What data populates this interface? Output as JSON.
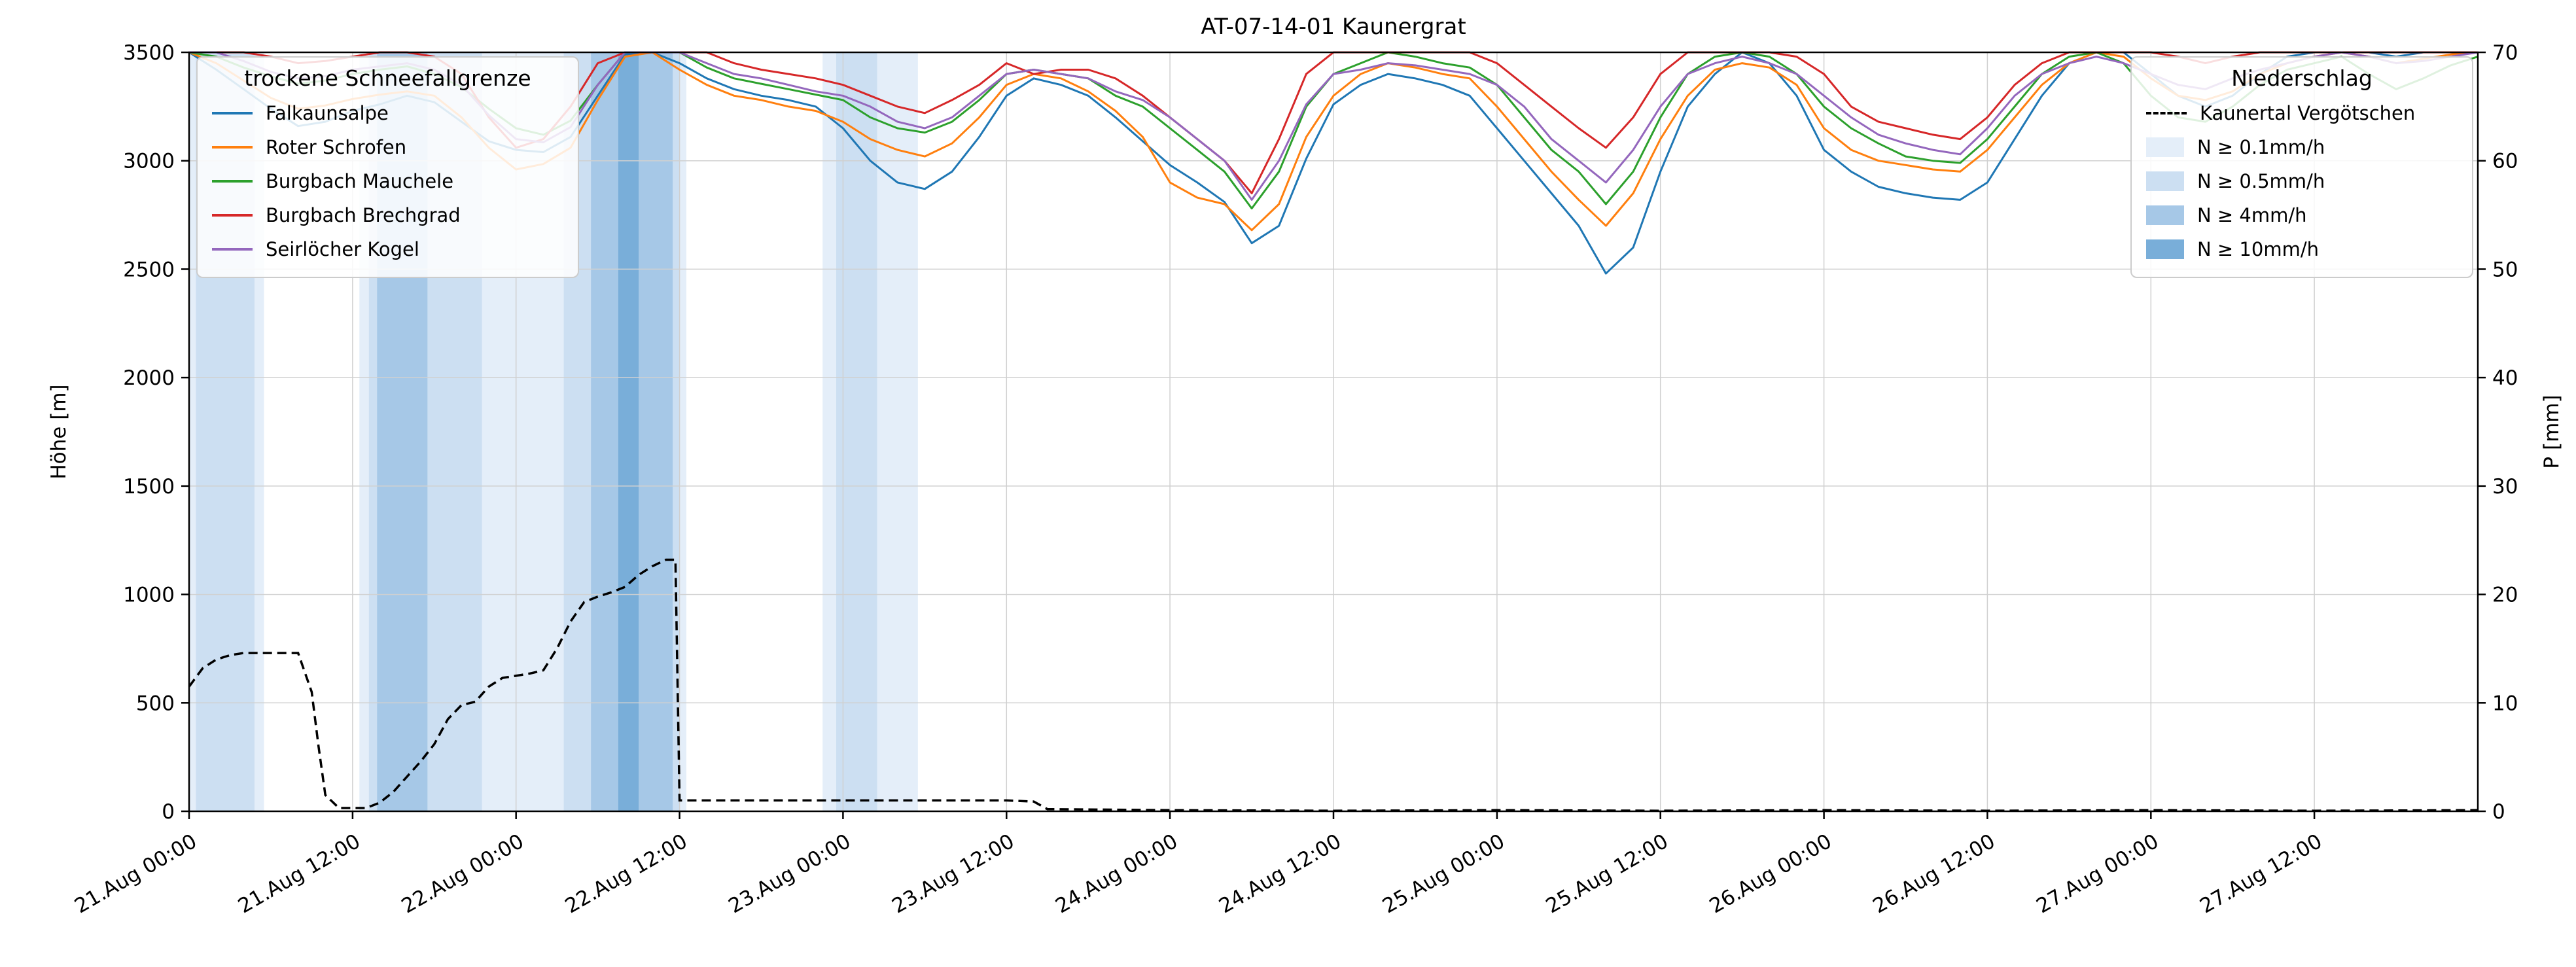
{
  "title": "AT-07-14-01 Kaunergrat",
  "axes": {
    "y_left": {
      "label": "Höhe [m]",
      "min": 0,
      "max": 3500,
      "ticks": [
        0,
        500,
        1000,
        1500,
        2000,
        2500,
        3000,
        3500
      ]
    },
    "y_right": {
      "label": "P [mm]",
      "min": 0,
      "max": 70,
      "ticks": [
        0,
        10,
        20,
        30,
        40,
        50,
        60,
        70
      ]
    },
    "x": {
      "tick_hours": [
        0,
        12,
        24,
        36,
        48,
        60,
        72,
        84,
        96,
        108,
        120,
        132,
        144,
        156
      ],
      "tick_labels": [
        "21.Aug 00:00",
        "21.Aug 12:00",
        "22.Aug 00:00",
        "22.Aug 12:00",
        "23.Aug 00:00",
        "23.Aug 12:00",
        "24.Aug 00:00",
        "24.Aug 12:00",
        "25.Aug 00:00",
        "25.Aug 12:00",
        "26.Aug 00:00",
        "26.Aug 12:00",
        "27.Aug 00:00",
        "27.Aug 12:00"
      ]
    }
  },
  "legend_left": {
    "title": "trockene Schneefallgrenze",
    "items": [
      "Falkaunsalpe",
      "Roter Schrofen",
      "Burgbach Mauchele",
      "Burgbach Brechgrad",
      "Seirlöcher Kogel"
    ]
  },
  "legend_right": {
    "title": "Niederschlag",
    "line_item": "Kaunertal Vergötschen",
    "band_items": [
      "N ≥ 0.1mm/h",
      "N ≥ 0.5mm/h",
      "N ≥ 4mm/h",
      "N ≥ 10mm/h"
    ]
  },
  "chart_data": {
    "type": "line",
    "x_range": [
      0,
      168
    ],
    "x_unit": "hours since 21.Aug 00:00",
    "x_hours": [
      0,
      2,
      4,
      6,
      8,
      10,
      12,
      14,
      16,
      18,
      20,
      22,
      24,
      26,
      28,
      30,
      32,
      34,
      36,
      38,
      40,
      42,
      44,
      46,
      48,
      50,
      52,
      54,
      56,
      58,
      60,
      62,
      64,
      66,
      68,
      70,
      72,
      74,
      76,
      78,
      80,
      82,
      84,
      86,
      88,
      90,
      92,
      94,
      96,
      98,
      100,
      102,
      104,
      106,
      108,
      110,
      112,
      114,
      116,
      118,
      120,
      122,
      124,
      126,
      128,
      130,
      132,
      134,
      136,
      138,
      140,
      142,
      144,
      146,
      148,
      150,
      152,
      154,
      156,
      158,
      160,
      162,
      164,
      166,
      168
    ],
    "series": [
      {
        "name": "Falkaunsalpe",
        "color": "#1f77b4",
        "values": [
          3500,
          3420,
          3330,
          3240,
          3160,
          3180,
          3230,
          3260,
          3300,
          3270,
          3180,
          3090,
          3050,
          3040,
          3110,
          3300,
          3490,
          3500,
          3450,
          3380,
          3330,
          3300,
          3280,
          3250,
          3150,
          3000,
          2900,
          2870,
          2950,
          3110,
          3300,
          3380,
          3350,
          3300,
          3200,
          3090,
          2980,
          2900,
          2810,
          2620,
          2700,
          3010,
          3260,
          3350,
          3400,
          3380,
          3350,
          3300,
          3150,
          3000,
          2850,
          2700,
          2480,
          2600,
          2950,
          3250,
          3400,
          3500,
          3450,
          3300,
          3050,
          2950,
          2880,
          2850,
          2830,
          2820,
          2900,
          3100,
          3300,
          3450,
          3500,
          3500,
          3400,
          3300,
          3250,
          3300,
          3400,
          3480,
          3500,
          3500,
          3500,
          3480,
          3500,
          3500,
          3500
        ]
      },
      {
        "name": "Roter Schrofen",
        "color": "#ff7f0e",
        "values": [
          3500,
          3450,
          3370,
          3290,
          3240,
          3255,
          3285,
          3305,
          3320,
          3300,
          3200,
          3060,
          2960,
          2985,
          3060,
          3280,
          3480,
          3500,
          3420,
          3350,
          3300,
          3280,
          3250,
          3230,
          3180,
          3100,
          3050,
          3020,
          3080,
          3200,
          3350,
          3400,
          3380,
          3320,
          3230,
          3110,
          2900,
          2830,
          2800,
          2680,
          2800,
          3110,
          3300,
          3400,
          3450,
          3430,
          3400,
          3380,
          3250,
          3100,
          2950,
          2820,
          2700,
          2850,
          3100,
          3300,
          3420,
          3450,
          3430,
          3350,
          3150,
          3050,
          3000,
          2980,
          2960,
          2950,
          3050,
          3200,
          3350,
          3450,
          3500,
          3480,
          3380,
          3300,
          3280,
          3320,
          3400,
          3450,
          3480,
          3500,
          3480,
          3450,
          3470,
          3490,
          3500
        ]
      },
      {
        "name": "Burgbach Mauchele",
        "color": "#2ca02c",
        "values": [
          3500,
          3480,
          3430,
          3390,
          3355,
          3370,
          3400,
          3420,
          3435,
          3400,
          3340,
          3240,
          3150,
          3120,
          3185,
          3350,
          3500,
          3500,
          3500,
          3430,
          3380,
          3355,
          3330,
          3305,
          3280,
          3200,
          3150,
          3130,
          3180,
          3280,
          3400,
          3420,
          3400,
          3380,
          3300,
          3250,
          3150,
          3050,
          2950,
          2780,
          2950,
          3250,
          3400,
          3450,
          3500,
          3480,
          3450,
          3430,
          3350,
          3200,
          3050,
          2950,
          2800,
          2950,
          3200,
          3400,
          3480,
          3500,
          3480,
          3400,
          3250,
          3150,
          3080,
          3020,
          3000,
          2990,
          3100,
          3250,
          3400,
          3480,
          3500,
          3450,
          3300,
          3200,
          3180,
          3250,
          3350,
          3420,
          3450,
          3480,
          3400,
          3330,
          3380,
          3440,
          3480
        ]
      },
      {
        "name": "Burgbach Brechgrad",
        "color": "#d62728",
        "values": [
          3500,
          3500,
          3500,
          3480,
          3450,
          3460,
          3480,
          3500,
          3500,
          3480,
          3400,
          3200,
          3060,
          3100,
          3250,
          3450,
          3500,
          3500,
          3500,
          3500,
          3450,
          3420,
          3400,
          3380,
          3350,
          3300,
          3250,
          3220,
          3280,
          3350,
          3450,
          3400,
          3420,
          3420,
          3380,
          3300,
          3200,
          3100,
          3000,
          2850,
          3100,
          3400,
          3500,
          3500,
          3500,
          3500,
          3500,
          3500,
          3450,
          3350,
          3250,
          3150,
          3060,
          3200,
          3400,
          3500,
          3500,
          3500,
          3500,
          3480,
          3400,
          3250,
          3180,
          3150,
          3120,
          3100,
          3200,
          3350,
          3450,
          3500,
          3500,
          3500,
          3500,
          3480,
          3450,
          3480,
          3500,
          3500,
          3500,
          3500,
          3500,
          3500,
          3500,
          3500,
          3500
        ]
      },
      {
        "name": "Seirlöcher Kogel",
        "color": "#9467bd",
        "values": [
          3500,
          3500,
          3460,
          3410,
          3380,
          3390,
          3420,
          3435,
          3450,
          3420,
          3350,
          3210,
          3100,
          3085,
          3155,
          3350,
          3500,
          3500,
          3500,
          3450,
          3400,
          3380,
          3350,
          3320,
          3300,
          3250,
          3180,
          3150,
          3200,
          3300,
          3400,
          3420,
          3400,
          3380,
          3320,
          3280,
          3200,
          3100,
          3000,
          2820,
          3000,
          3260,
          3400,
          3420,
          3450,
          3440,
          3420,
          3400,
          3350,
          3250,
          3100,
          3000,
          2900,
          3050,
          3250,
          3400,
          3450,
          3480,
          3450,
          3400,
          3300,
          3200,
          3120,
          3080,
          3050,
          3030,
          3150,
          3300,
          3400,
          3450,
          3480,
          3450,
          3400,
          3350,
          3330,
          3380,
          3420,
          3450,
          3480,
          3500,
          3480,
          3450,
          3460,
          3480,
          3500
        ]
      }
    ],
    "precip_line": {
      "name": "Kaunertal Vergötschen",
      "color": "#000000",
      "style": "dashed",
      "axis": "right",
      "points": [
        [
          0,
          11.5
        ],
        [
          1,
          13.2
        ],
        [
          2,
          14.0
        ],
        [
          3,
          14.4
        ],
        [
          4,
          14.6
        ],
        [
          8,
          14.6
        ],
        [
          9,
          11.0
        ],
        [
          9.5,
          6.0
        ],
        [
          10,
          1.5
        ],
        [
          11,
          0.3
        ],
        [
          13,
          0.3
        ],
        [
          14,
          0.8
        ],
        [
          15,
          1.8
        ],
        [
          16,
          3.2
        ],
        [
          17,
          4.6
        ],
        [
          18,
          6.2
        ],
        [
          19,
          8.5
        ],
        [
          20,
          9.8
        ],
        [
          21,
          10.1
        ],
        [
          22,
          11.5
        ],
        [
          23,
          12.3
        ],
        [
          24,
          12.5
        ],
        [
          25,
          12.7
        ],
        [
          26,
          13.0
        ],
        [
          27,
          15.0
        ],
        [
          28,
          17.5
        ],
        [
          29,
          19.3
        ],
        [
          30,
          19.8
        ],
        [
          31,
          20.2
        ],
        [
          32,
          20.7
        ],
        [
          33,
          21.8
        ],
        [
          34,
          22.6
        ],
        [
          35,
          23.2
        ],
        [
          35.7,
          23.2
        ],
        [
          36,
          1.0
        ],
        [
          44,
          1.0
        ],
        [
          52,
          1.0
        ],
        [
          60,
          1.0
        ],
        [
          62,
          0.9
        ],
        [
          63,
          0.2
        ],
        [
          72,
          0.1
        ],
        [
          84,
          0.05
        ],
        [
          96,
          0.1
        ],
        [
          108,
          0.05
        ],
        [
          120,
          0.1
        ],
        [
          132,
          0.05
        ],
        [
          144,
          0.1
        ],
        [
          156,
          0.05
        ],
        [
          168,
          0.1
        ]
      ]
    },
    "band_levels": [
      "0.1",
      "0.5",
      "4",
      "10"
    ],
    "band_colors": {
      "0.1": "#e4eef9",
      "0.5": "#ccdff2",
      "4": "#a6c8e7",
      "10": "#79aed9"
    },
    "precip_bands": [
      {
        "from": 0.0,
        "to": 5.5,
        "level": "0.1"
      },
      {
        "from": 12.5,
        "to": 36.5,
        "level": "0.1"
      },
      {
        "from": 46.5,
        "to": 53.5,
        "level": "0.1"
      },
      {
        "from": 0.5,
        "to": 4.8,
        "level": "0.5"
      },
      {
        "from": 13.2,
        "to": 21.5,
        "level": "0.5"
      },
      {
        "from": 27.5,
        "to": 36.0,
        "level": "0.5"
      },
      {
        "from": 47.5,
        "to": 50.5,
        "level": "0.5"
      },
      {
        "from": 13.8,
        "to": 17.5,
        "level": "4"
      },
      {
        "from": 29.5,
        "to": 35.5,
        "level": "4"
      },
      {
        "from": 31.5,
        "to": 33.0,
        "level": "10"
      }
    ]
  }
}
